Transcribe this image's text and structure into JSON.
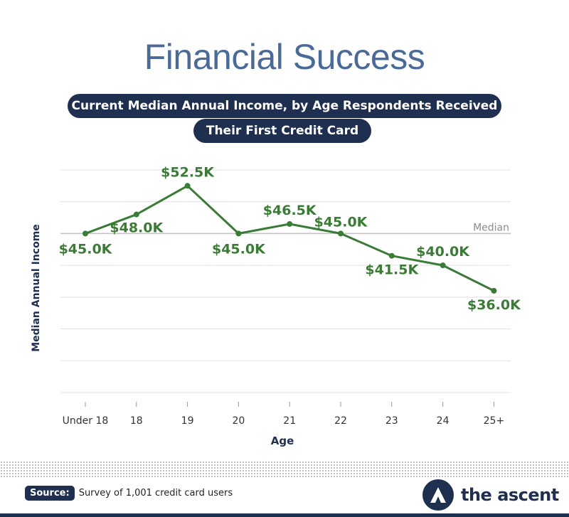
{
  "header": {
    "title": "Financial Success",
    "subtitle_line1": "Current Median Annual Income, by Age Respondents Received",
    "subtitle_line2": "Their First Credit Card"
  },
  "colors": {
    "line": "#3a7b35",
    "navy": "#1e2f4f",
    "title": "#4a6b98",
    "grid": "#e1e1e1",
    "median": "#bfbfbf"
  },
  "chart_data": {
    "type": "line",
    "categories": [
      "Under 18",
      "18",
      "19",
      "20",
      "21",
      "22",
      "23",
      "24",
      "25+"
    ],
    "values": [
      45.0,
      48.0,
      52.5,
      45.0,
      46.5,
      45.0,
      41.5,
      40.0,
      36.0
    ],
    "data_labels": [
      "$45.0K",
      "$48.0K",
      "$52.5K",
      "$45.0K",
      "$46.5K",
      "$45.0K",
      "$41.5K",
      "$40.0K",
      "$36.0K"
    ],
    "xlabel": "Age",
    "ylabel": "Median Annual Income",
    "ylim": [
      20,
      56
    ],
    "grid": true,
    "reference_line": {
      "value": 45.0,
      "label": "Median"
    }
  },
  "footer": {
    "source_label": "Source:",
    "source_text": "Survey of 1,001 credit card users",
    "logo_icon": "the-ascent-logo-icon",
    "logo_text": "the ascent"
  }
}
